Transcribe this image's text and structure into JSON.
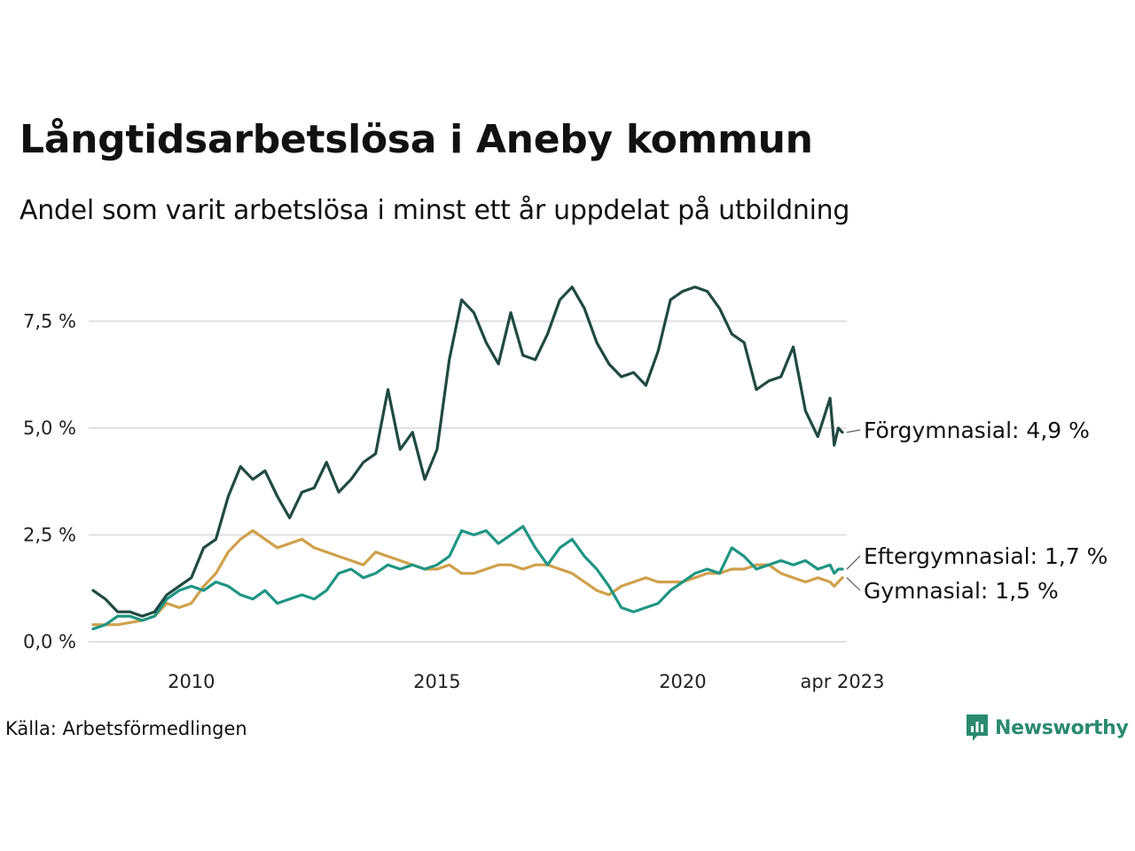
{
  "header": {
    "title": "Långtidsarbetslösa i Aneby kommun",
    "subtitle": "Andel som varit arbetslösa i minst ett år uppdelat på utbildning"
  },
  "footer": {
    "source": "Källa: Arbetsförmedlingen",
    "brand": "Newsworthy",
    "brand_color": "#2a8a70"
  },
  "chart_data": {
    "type": "line",
    "title": "",
    "xlabel": "",
    "ylabel": "",
    "x_range": [
      "2008-01",
      "2023-04"
    ],
    "x_ticks": [
      "2010",
      "2015",
      "2020",
      "apr 2023"
    ],
    "ylim": [
      0,
      9
    ],
    "y_ticks": [
      "0,0 %",
      "2,5 %",
      "5,0 %",
      "7,5 %"
    ],
    "y_tick_values": [
      0,
      2.5,
      5,
      7.5
    ],
    "grid": "horizontal",
    "series": [
      {
        "name": "Förgymnasial",
        "label": "Förgymnasial: 4,9 %",
        "color": "#1f4a42",
        "points": [
          [
            "2008-01",
            1.2
          ],
          [
            "2008-04",
            1.0
          ],
          [
            "2008-07",
            0.7
          ],
          [
            "2008-10",
            0.7
          ],
          [
            "2009-01",
            0.6
          ],
          [
            "2009-04",
            0.7
          ],
          [
            "2009-07",
            1.1
          ],
          [
            "2009-10",
            1.3
          ],
          [
            "2010-01",
            1.5
          ],
          [
            "2010-04",
            2.2
          ],
          [
            "2010-07",
            2.4
          ],
          [
            "2010-10",
            3.4
          ],
          [
            "2011-01",
            4.1
          ],
          [
            "2011-04",
            3.8
          ],
          [
            "2011-07",
            4.0
          ],
          [
            "2011-10",
            3.4
          ],
          [
            "2012-01",
            2.9
          ],
          [
            "2012-04",
            3.5
          ],
          [
            "2012-07",
            3.6
          ],
          [
            "2012-10",
            4.2
          ],
          [
            "2013-01",
            3.5
          ],
          [
            "2013-04",
            3.8
          ],
          [
            "2013-07",
            4.2
          ],
          [
            "2013-10",
            4.4
          ],
          [
            "2014-01",
            5.9
          ],
          [
            "2014-04",
            4.5
          ],
          [
            "2014-07",
            4.9
          ],
          [
            "2014-10",
            3.8
          ],
          [
            "2015-01",
            4.5
          ],
          [
            "2015-04",
            6.6
          ],
          [
            "2015-07",
            8.0
          ],
          [
            "2015-10",
            7.7
          ],
          [
            "2016-01",
            7.0
          ],
          [
            "2016-04",
            6.5
          ],
          [
            "2016-07",
            7.7
          ],
          [
            "2016-10",
            6.7
          ],
          [
            "2017-01",
            6.6
          ],
          [
            "2017-04",
            7.2
          ],
          [
            "2017-07",
            8.0
          ],
          [
            "2017-10",
            8.3
          ],
          [
            "2018-01",
            7.8
          ],
          [
            "2018-04",
            7.0
          ],
          [
            "2018-07",
            6.5
          ],
          [
            "2018-10",
            6.2
          ],
          [
            "2019-01",
            6.3
          ],
          [
            "2019-04",
            6.0
          ],
          [
            "2019-07",
            6.8
          ],
          [
            "2019-10",
            8.0
          ],
          [
            "2020-01",
            8.2
          ],
          [
            "2020-04",
            8.3
          ],
          [
            "2020-07",
            8.2
          ],
          [
            "2020-10",
            7.8
          ],
          [
            "2021-01",
            7.2
          ],
          [
            "2021-04",
            7.0
          ],
          [
            "2021-07",
            5.9
          ],
          [
            "2021-10",
            6.1
          ],
          [
            "2022-01",
            6.2
          ],
          [
            "2022-04",
            6.9
          ],
          [
            "2022-07",
            5.4
          ],
          [
            "2022-10",
            4.8
          ],
          [
            "2023-01",
            5.7
          ],
          [
            "2023-02",
            4.6
          ],
          [
            "2023-03",
            5.0
          ],
          [
            "2023-04",
            4.9
          ]
        ]
      },
      {
        "name": "Eftergymnasial",
        "label": "Eftergymnasial: 1,7 %",
        "color": "#1f9584",
        "points": [
          [
            "2008-01",
            0.3
          ],
          [
            "2008-04",
            0.4
          ],
          [
            "2008-07",
            0.6
          ],
          [
            "2008-10",
            0.6
          ],
          [
            "2009-01",
            0.5
          ],
          [
            "2009-04",
            0.6
          ],
          [
            "2009-07",
            1.0
          ],
          [
            "2009-10",
            1.2
          ],
          [
            "2010-01",
            1.3
          ],
          [
            "2010-04",
            1.2
          ],
          [
            "2010-07",
            1.4
          ],
          [
            "2010-10",
            1.3
          ],
          [
            "2011-01",
            1.1
          ],
          [
            "2011-04",
            1.0
          ],
          [
            "2011-07",
            1.2
          ],
          [
            "2011-10",
            0.9
          ],
          [
            "2012-01",
            1.0
          ],
          [
            "2012-04",
            1.1
          ],
          [
            "2012-07",
            1.0
          ],
          [
            "2012-10",
            1.2
          ],
          [
            "2013-01",
            1.6
          ],
          [
            "2013-04",
            1.7
          ],
          [
            "2013-07",
            1.5
          ],
          [
            "2013-10",
            1.6
          ],
          [
            "2014-01",
            1.8
          ],
          [
            "2014-04",
            1.7
          ],
          [
            "2014-07",
            1.8
          ],
          [
            "2014-10",
            1.7
          ],
          [
            "2015-01",
            1.8
          ],
          [
            "2015-04",
            2.0
          ],
          [
            "2015-07",
            2.6
          ],
          [
            "2015-10",
            2.5
          ],
          [
            "2016-01",
            2.6
          ],
          [
            "2016-04",
            2.3
          ],
          [
            "2016-07",
            2.5
          ],
          [
            "2016-10",
            2.7
          ],
          [
            "2017-01",
            2.2
          ],
          [
            "2017-04",
            1.8
          ],
          [
            "2017-07",
            2.2
          ],
          [
            "2017-10",
            2.4
          ],
          [
            "2018-01",
            2.0
          ],
          [
            "2018-04",
            1.7
          ],
          [
            "2018-07",
            1.3
          ],
          [
            "2018-10",
            0.8
          ],
          [
            "2019-01",
            0.7
          ],
          [
            "2019-04",
            0.8
          ],
          [
            "2019-07",
            0.9
          ],
          [
            "2019-10",
            1.2
          ],
          [
            "2020-01",
            1.4
          ],
          [
            "2020-04",
            1.6
          ],
          [
            "2020-07",
            1.7
          ],
          [
            "2020-10",
            1.6
          ],
          [
            "2021-01",
            2.2
          ],
          [
            "2021-04",
            2.0
          ],
          [
            "2021-07",
            1.7
          ],
          [
            "2021-10",
            1.8
          ],
          [
            "2022-01",
            1.9
          ],
          [
            "2022-04",
            1.8
          ],
          [
            "2022-07",
            1.9
          ],
          [
            "2022-10",
            1.7
          ],
          [
            "2023-01",
            1.8
          ],
          [
            "2023-02",
            1.6
          ],
          [
            "2023-03",
            1.7
          ],
          [
            "2023-04",
            1.7
          ]
        ]
      },
      {
        "name": "Gymnasial",
        "label": "Gymnasial: 1,5 %",
        "color": "#d0a04a",
        "points": [
          [
            "2008-01",
            0.4
          ],
          [
            "2008-04",
            0.4
          ],
          [
            "2008-07",
            0.4
          ],
          [
            "2008-10",
            0.45
          ],
          [
            "2009-01",
            0.5
          ],
          [
            "2009-04",
            0.6
          ],
          [
            "2009-07",
            0.9
          ],
          [
            "2009-10",
            0.8
          ],
          [
            "2010-01",
            0.9
          ],
          [
            "2010-04",
            1.3
          ],
          [
            "2010-07",
            1.6
          ],
          [
            "2010-10",
            2.1
          ],
          [
            "2011-01",
            2.4
          ],
          [
            "2011-04",
            2.6
          ],
          [
            "2011-07",
            2.4
          ],
          [
            "2011-10",
            2.2
          ],
          [
            "2012-01",
            2.3
          ],
          [
            "2012-04",
            2.4
          ],
          [
            "2012-07",
            2.2
          ],
          [
            "2012-10",
            2.1
          ],
          [
            "2013-01",
            2.0
          ],
          [
            "2013-04",
            1.9
          ],
          [
            "2013-07",
            1.8
          ],
          [
            "2013-10",
            2.1
          ],
          [
            "2014-01",
            2.0
          ],
          [
            "2014-04",
            1.9
          ],
          [
            "2014-07",
            1.8
          ],
          [
            "2014-10",
            1.7
          ],
          [
            "2015-01",
            1.7
          ],
          [
            "2015-04",
            1.8
          ],
          [
            "2015-07",
            1.6
          ],
          [
            "2015-10",
            1.6
          ],
          [
            "2016-01",
            1.7
          ],
          [
            "2016-04",
            1.8
          ],
          [
            "2016-07",
            1.8
          ],
          [
            "2016-10",
            1.7
          ],
          [
            "2017-01",
            1.8
          ],
          [
            "2017-04",
            1.8
          ],
          [
            "2017-07",
            1.7
          ],
          [
            "2017-10",
            1.6
          ],
          [
            "2018-01",
            1.4
          ],
          [
            "2018-04",
            1.2
          ],
          [
            "2018-07",
            1.1
          ],
          [
            "2018-10",
            1.3
          ],
          [
            "2019-01",
            1.4
          ],
          [
            "2019-04",
            1.5
          ],
          [
            "2019-07",
            1.4
          ],
          [
            "2019-10",
            1.4
          ],
          [
            "2020-01",
            1.4
          ],
          [
            "2020-04",
            1.5
          ],
          [
            "2020-07",
            1.6
          ],
          [
            "2020-10",
            1.6
          ],
          [
            "2021-01",
            1.7
          ],
          [
            "2021-04",
            1.7
          ],
          [
            "2021-07",
            1.8
          ],
          [
            "2021-10",
            1.8
          ],
          [
            "2022-01",
            1.6
          ],
          [
            "2022-04",
            1.5
          ],
          [
            "2022-07",
            1.4
          ],
          [
            "2022-10",
            1.5
          ],
          [
            "2023-01",
            1.4
          ],
          [
            "2023-02",
            1.3
          ],
          [
            "2023-03",
            1.4
          ],
          [
            "2023-04",
            1.5
          ]
        ]
      }
    ]
  }
}
